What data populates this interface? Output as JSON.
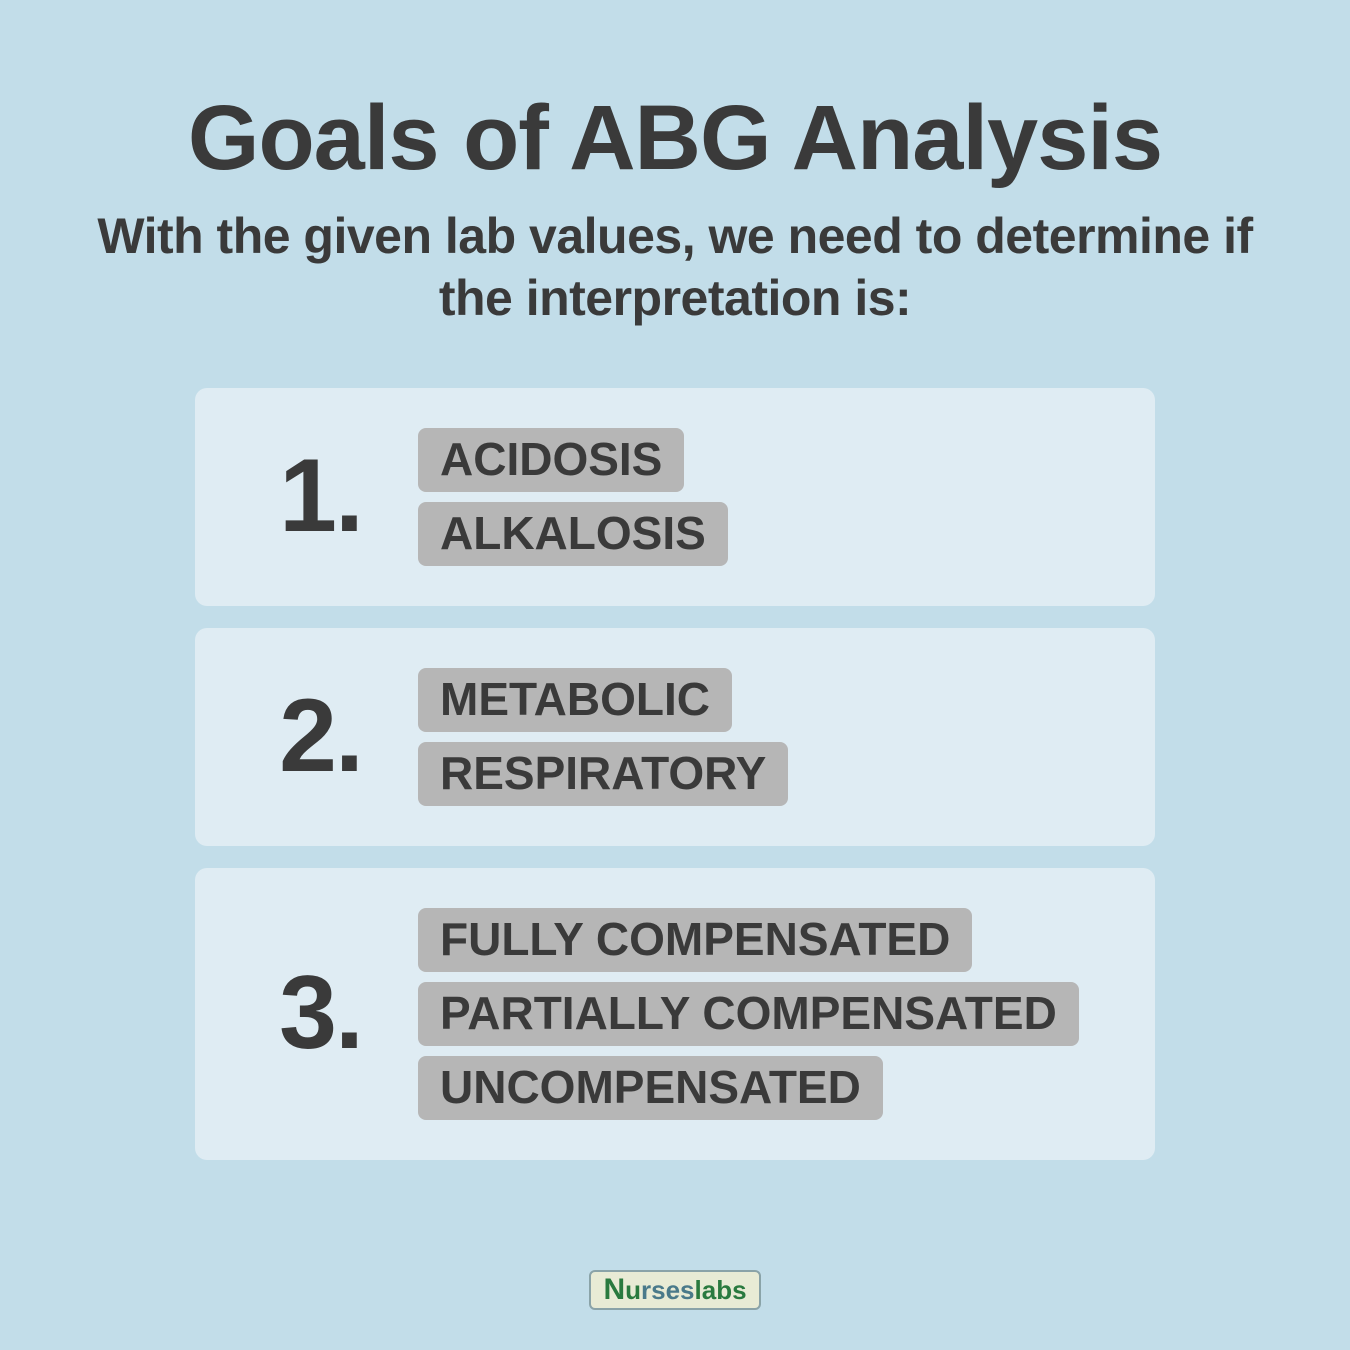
{
  "colors": {
    "page_bg": "#c2dde9",
    "card_bg": "#dfecf3",
    "tag_bg": "#b6b6b6",
    "text": "#3a3a3a",
    "logo_bg": "#e8ebd5",
    "logo_border": "#8aa3a8",
    "logo_green": "#2a7a3f",
    "logo_blue": "#4a7a8a"
  },
  "typography": {
    "title_fontsize": 92,
    "subtitle_fontsize": 50,
    "number_fontsize": 104,
    "tag_fontsize": 46,
    "logo_fontsize": 30
  },
  "layout": {
    "card_radius": 12,
    "tag_radius": 8,
    "card_gap": 22,
    "tag_gap": 10
  },
  "title": "Goals of ABG Analysis",
  "subtitle": "With the given lab values, we need to determine if the interpretation is:",
  "cards": [
    {
      "num": "1.",
      "tags": [
        "ACIDOSIS",
        "ALKALOSIS"
      ]
    },
    {
      "num": "2.",
      "tags": [
        "METABOLIC",
        "RESPIRATORY"
      ]
    },
    {
      "num": "3.",
      "tags": [
        "FULLY COMPENSATED",
        "PARTIALLY COMPENSATED",
        "UNCOMPENSATED"
      ]
    }
  ],
  "logo": {
    "n": "N",
    "u": "u",
    "rses": "rses",
    "labs": "labs"
  }
}
